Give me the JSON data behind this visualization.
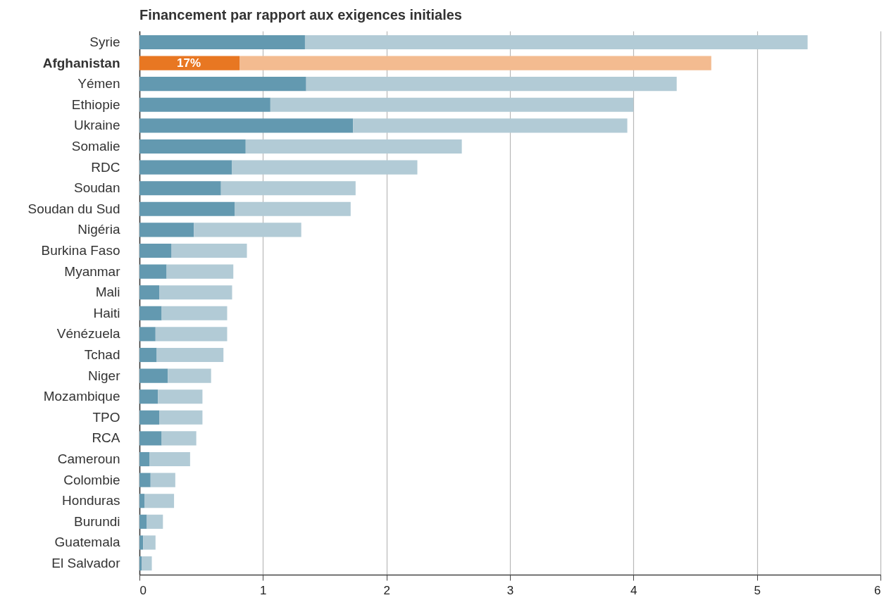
{
  "chart_data": {
    "type": "bar",
    "orientation": "horizontal",
    "stacked": true,
    "title": "Financement par rapport aux exigences initiales",
    "categories": [
      "Syrie",
      "Afghanistan",
      "Yémen",
      "Ethiopie",
      "Ukraine",
      "Somalie",
      "RDC",
      "Soudan",
      "Soudan du Sud",
      "Nigéria",
      "Burkina Faso",
      "Myanmar",
      "Mali",
      "Haiti",
      "Vénézuela",
      "Tchad",
      "Niger",
      "Mozambique",
      "TPO",
      "RCA",
      "Cameroun",
      "Colombie",
      "Honduras",
      "Burundi",
      "Guatemala",
      "El Salvador"
    ],
    "series": [
      {
        "color": "#6399b0",
        "colors": [
          "#6399b0",
          "#e87722",
          "#6399b0",
          "#6399b0",
          "#6399b0",
          "#6399b0",
          "#6399b0",
          "#6399b0",
          "#6399b0",
          "#6399b0",
          "#6399b0",
          "#6399b0",
          "#6399b0",
          "#6399b0",
          "#6399b0",
          "#6399b0",
          "#6399b0",
          "#6399b0",
          "#6399b0",
          "#6399b0",
          "#6399b0",
          "#6399b0",
          "#6399b0",
          "#6399b0",
          "#6399b0",
          "#6399b0"
        ],
        "values": [
          1.34,
          0.81,
          1.35,
          1.06,
          1.73,
          0.86,
          0.75,
          0.66,
          0.77,
          0.44,
          0.26,
          0.22,
          0.16,
          0.18,
          0.13,
          0.14,
          0.23,
          0.15,
          0.16,
          0.18,
          0.08,
          0.09,
          0.04,
          0.06,
          0.03,
          0.02
        ]
      },
      {
        "color": "#b2cbd6",
        "colors": [
          "#b2cbd6",
          "#f3bb90",
          "#b2cbd6",
          "#b2cbd6",
          "#b2cbd6",
          "#b2cbd6",
          "#b2cbd6",
          "#b2cbd6",
          "#b2cbd6",
          "#b2cbd6",
          "#b2cbd6",
          "#b2cbd6",
          "#b2cbd6",
          "#b2cbd6",
          "#b2cbd6",
          "#b2cbd6",
          "#b2cbd6",
          "#b2cbd6",
          "#b2cbd6",
          "#b2cbd6",
          "#b2cbd6",
          "#b2cbd6",
          "#b2cbd6",
          "#b2cbd6",
          "#b2cbd6",
          "#b2cbd6"
        ],
        "values": [
          4.07,
          3.82,
          3.0,
          2.94,
          2.22,
          1.75,
          1.5,
          1.09,
          0.94,
          0.87,
          0.61,
          0.54,
          0.59,
          0.53,
          0.58,
          0.54,
          0.35,
          0.36,
          0.35,
          0.28,
          0.33,
          0.2,
          0.24,
          0.13,
          0.1,
          0.08
        ]
      }
    ],
    "annotations": [
      {
        "text": "17%",
        "x": 0.4,
        "y": "Afghanistan"
      }
    ],
    "xlim": [
      0,
      6
    ],
    "xticks": [
      0,
      1,
      2,
      3,
      4,
      5,
      6
    ],
    "grid": "x"
  }
}
